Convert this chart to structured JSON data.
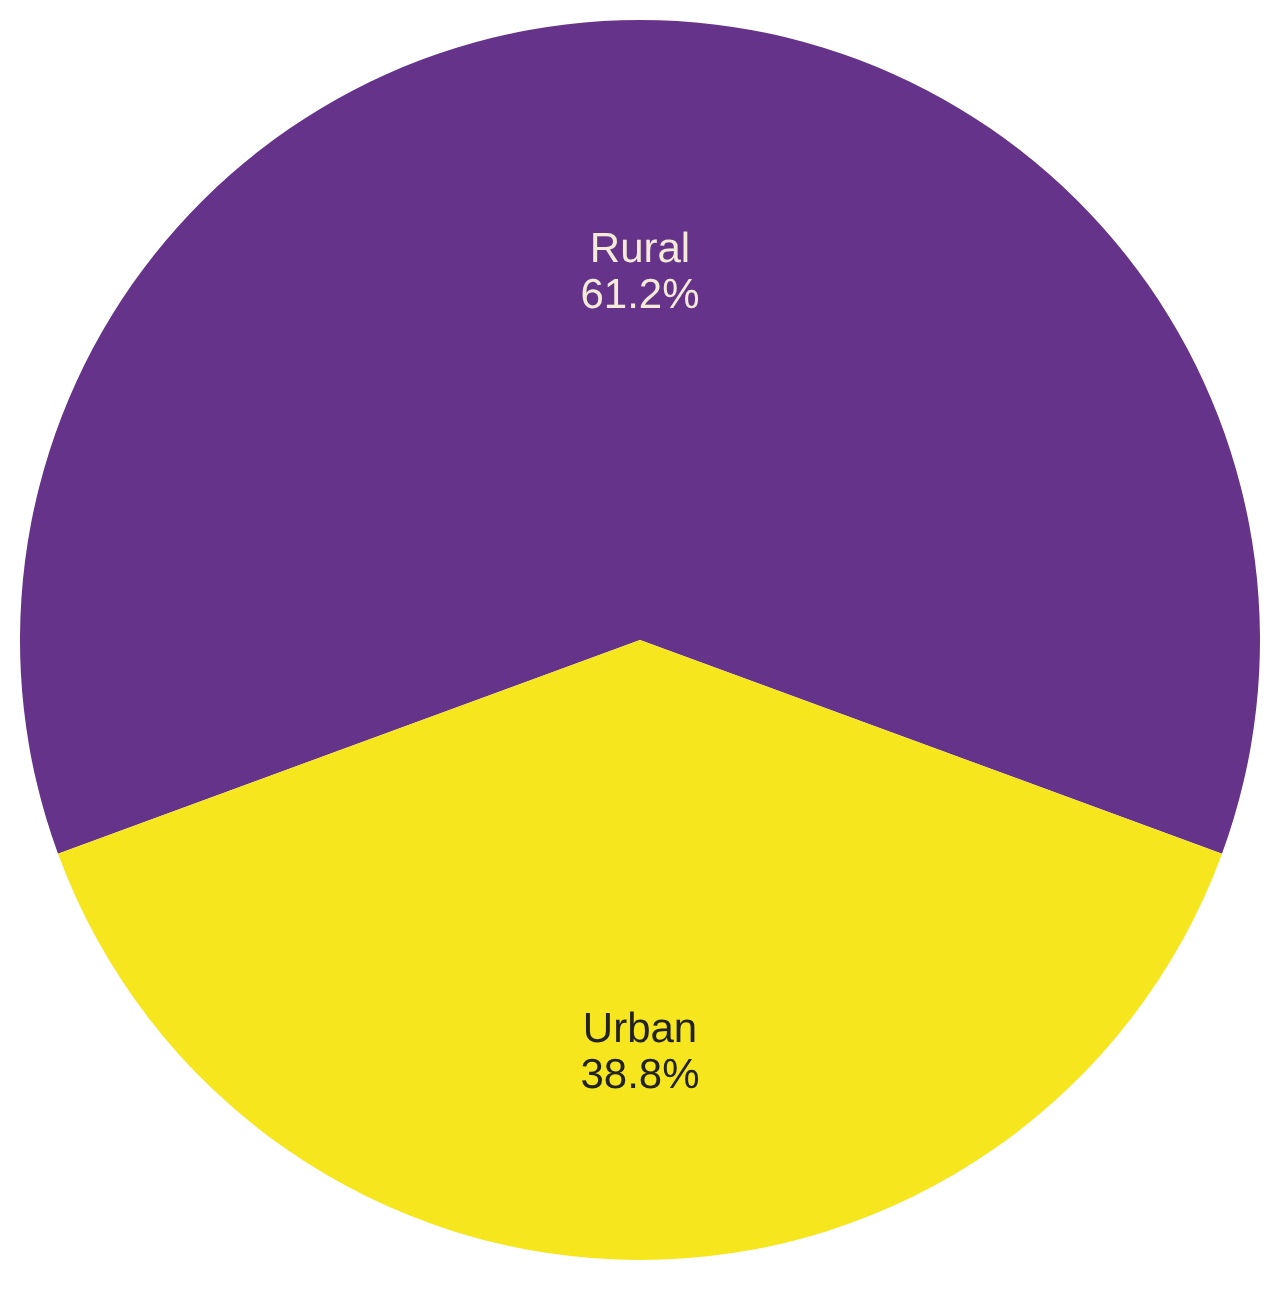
{
  "chart_data": {
    "type": "pie",
    "categories": [
      "Rural",
      "Urban"
    ],
    "values": [
      61.2,
      38.8
    ],
    "colors": [
      "#66338b",
      "#f5e61e"
    ],
    "value_labels": [
      "61.2%",
      "38.8%"
    ]
  }
}
